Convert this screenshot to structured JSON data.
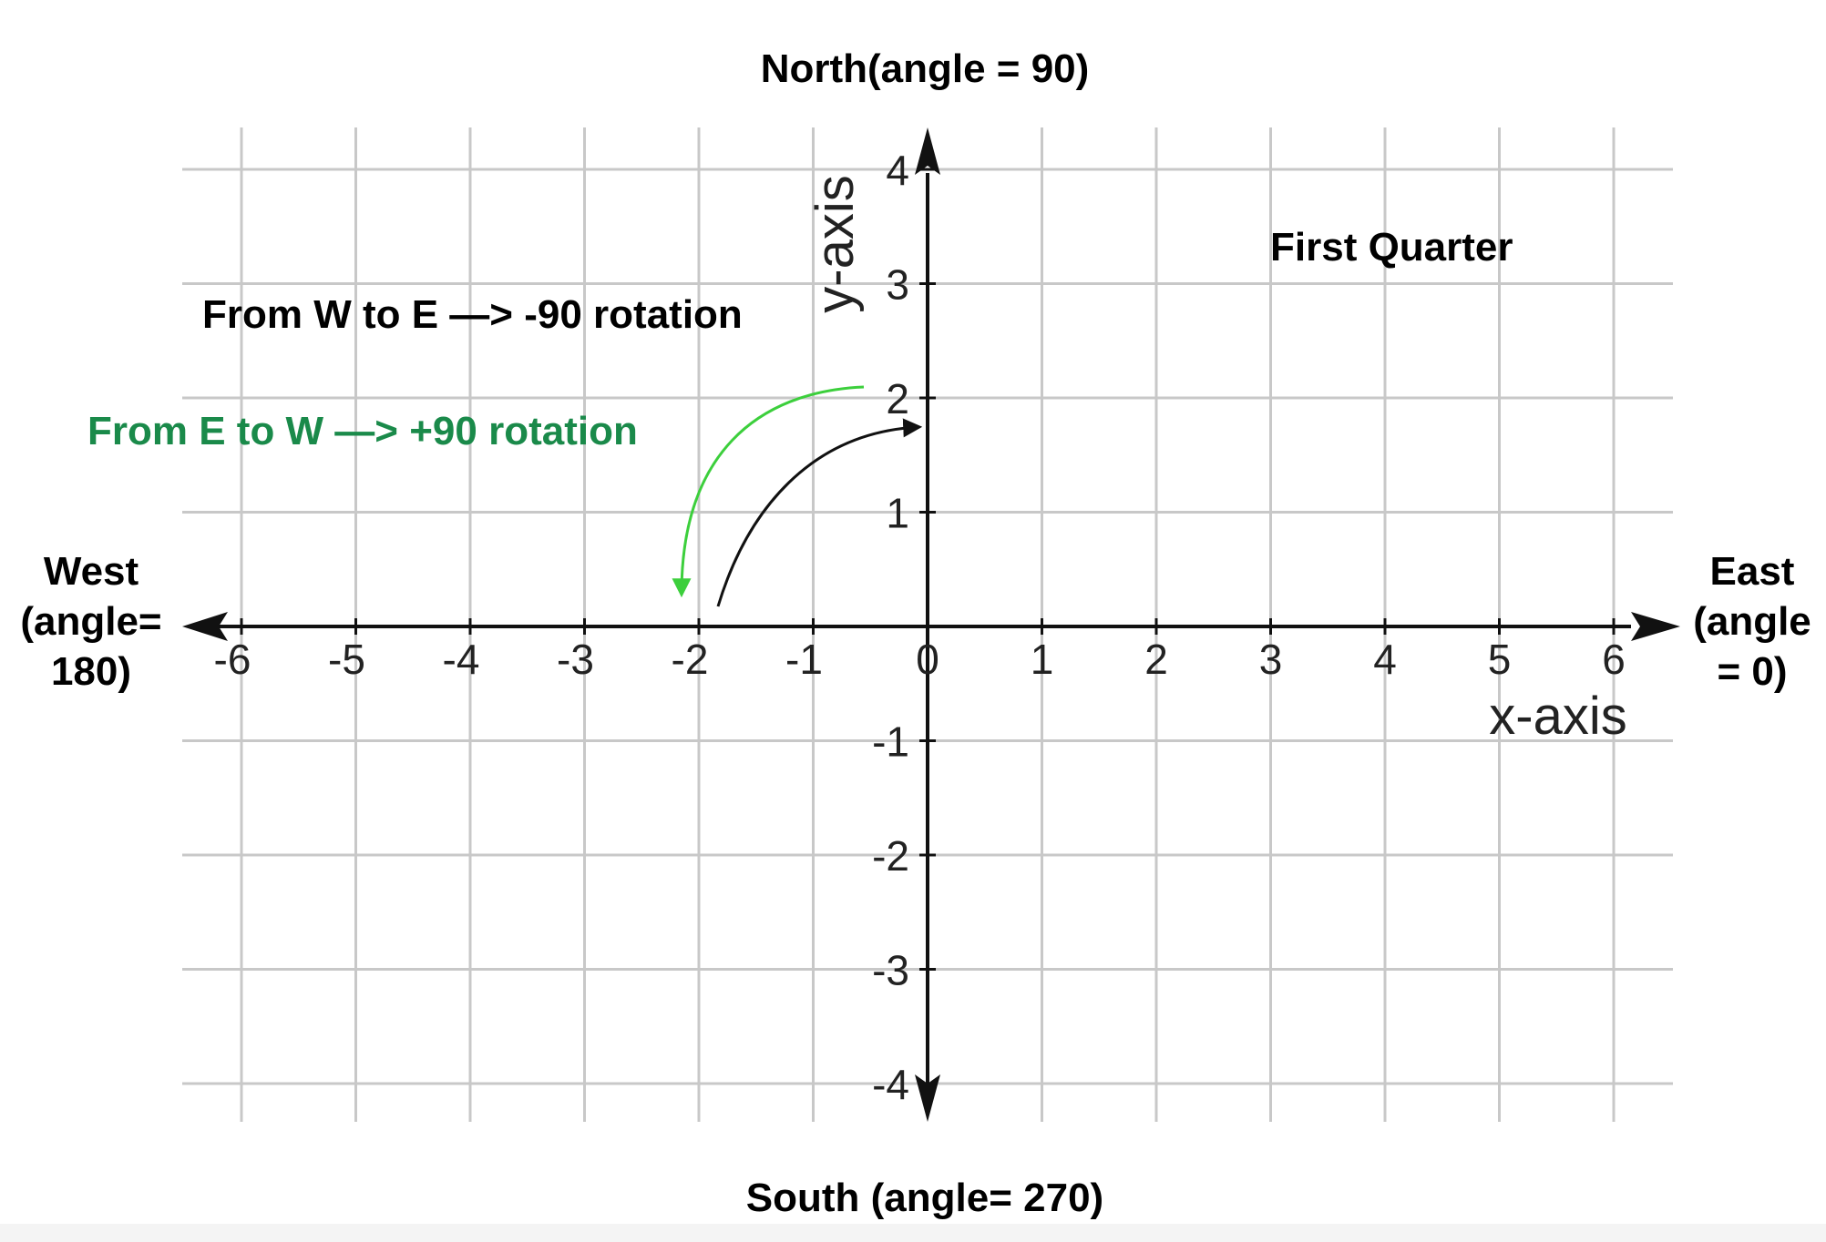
{
  "labels": {
    "north": "North(angle = 90)",
    "south": "South (angle= 270)",
    "west": [
      "West",
      "(angle=",
      "180)"
    ],
    "east": [
      "East",
      "(angle",
      "= 0)"
    ],
    "first_quarter": "First Quarter",
    "w_to_e": "From W to E —> -90 rotation",
    "e_to_w": "From E to W —> +90 rotation"
  },
  "axes": {
    "x_label": "x-axis",
    "y_label": "y-axis",
    "x_ticks": [
      -6,
      -5,
      -4,
      -3,
      -2,
      -1,
      0,
      1,
      2,
      3,
      4,
      5,
      6
    ],
    "y_ticks": [
      4,
      3,
      2,
      1,
      -1,
      -2,
      -3,
      -4
    ]
  },
  "colors": {
    "grid": "#c8c8c8",
    "axis": "#111111",
    "e_to_w_text": "#1a8a4a",
    "e_to_w_arrow": "#3ccf3c",
    "w_to_e_arrow": "#111111"
  }
}
